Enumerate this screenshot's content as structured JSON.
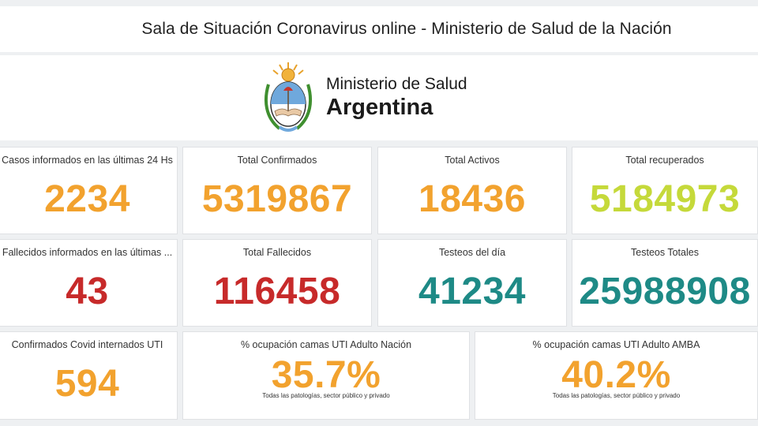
{
  "header": {
    "title": "Sala de Situación Coronavirus online - Ministerio de Salud de la Nación"
  },
  "logo": {
    "icon": "argentina-coat-of-arms-icon",
    "line1": "Ministerio de Salud",
    "line2": "Argentina"
  },
  "cards": [
    {
      "label": "Casos informados en las últimas 24 Hs",
      "value": "2234",
      "color": "#f2a22e"
    },
    {
      "label": "Total Confirmados",
      "value": "5319867",
      "color": "#f2a22e"
    },
    {
      "label": "Total Activos",
      "value": "18436",
      "color": "#f2a22e"
    },
    {
      "label": "Total recuperados",
      "value": "5184973",
      "color": "#c5d93a"
    },
    {
      "label": "Fallecidos informados en las últimas ...",
      "value": "43",
      "color": "#c72a2a"
    },
    {
      "label": "Total Fallecidos",
      "value": "116458",
      "color": "#c72a2a"
    },
    {
      "label": "Testeos del día",
      "value": "41234",
      "color": "#1e8a86"
    },
    {
      "label": "Testeos Totales",
      "value": "25988908",
      "color": "#1e8a86"
    },
    {
      "label": "Confirmados Covid internados UTI",
      "value": "594",
      "color": "#f2a22e"
    },
    {
      "label": "% ocupación camas UTI Adulto Nación",
      "value": "35.7%",
      "color": "#f2a22e",
      "sub": "Todas las patologías, sector público y privado"
    },
    {
      "label": "% ocupación camas UTI Adulto AMBA",
      "value": "40.2%",
      "color": "#f2a22e",
      "sub": "Todas las patologías, sector público y privado"
    }
  ]
}
